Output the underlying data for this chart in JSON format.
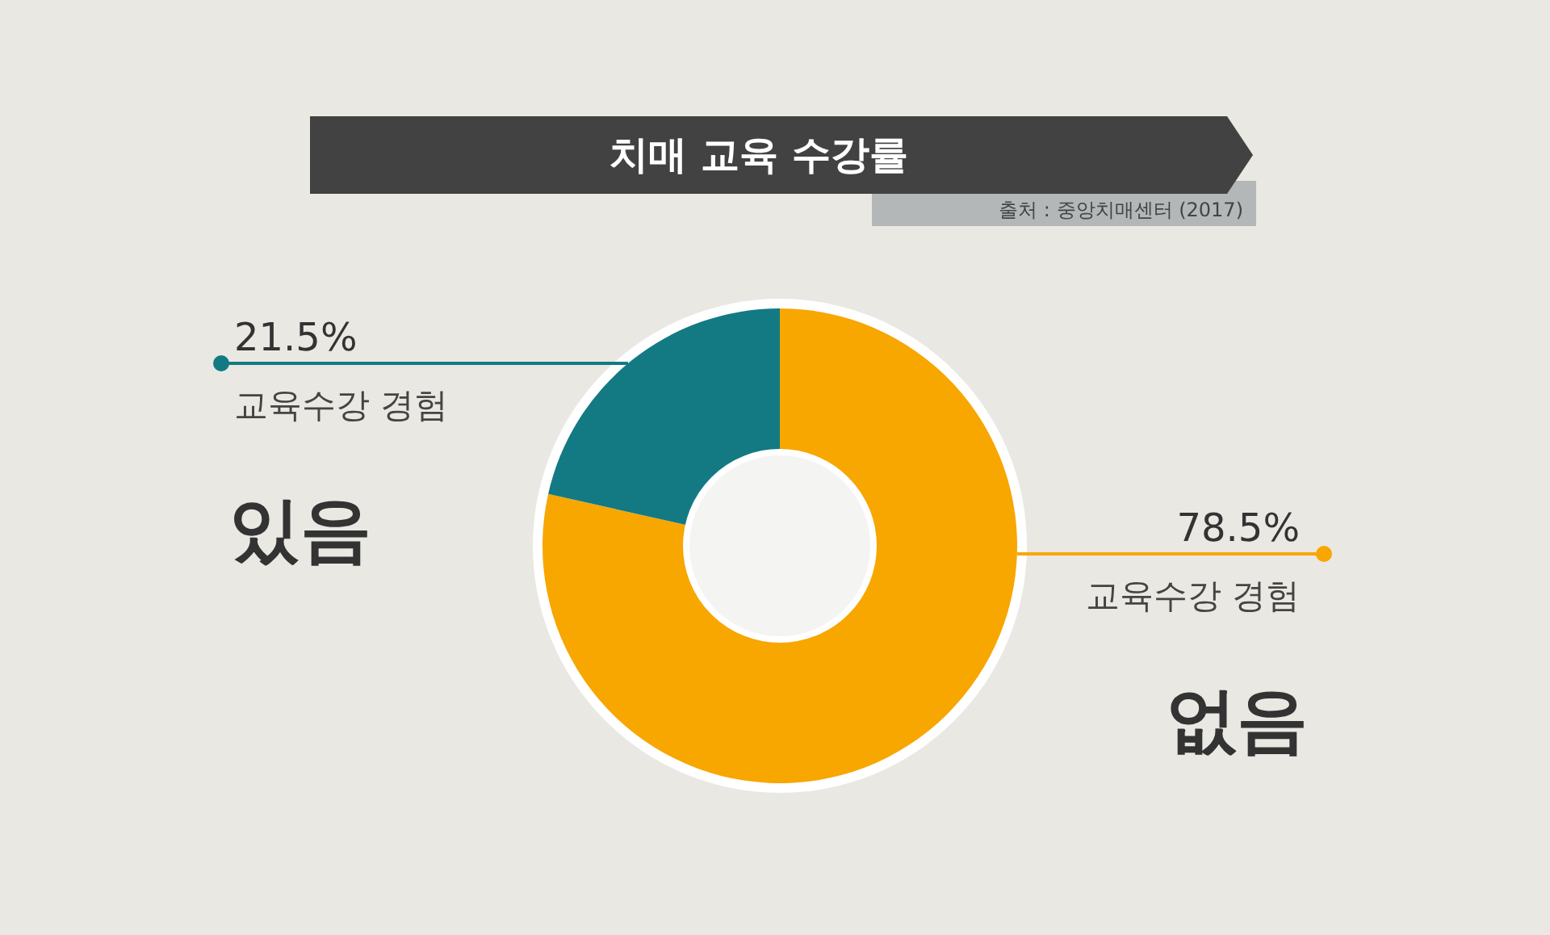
{
  "chart_data": {
    "type": "donut",
    "title": "치매 교육 수강률",
    "subtitle": "출처 : 중앙치매센터 (2017)",
    "categories": [
      "교육수강 경험 없음",
      "교육수강 경험 있음"
    ],
    "values": [
      78.5,
      21.5
    ],
    "colors": [
      "#f8a600",
      "#137a83"
    ],
    "value_labels": [
      "78.5%",
      "21.5%"
    ]
  }
}
